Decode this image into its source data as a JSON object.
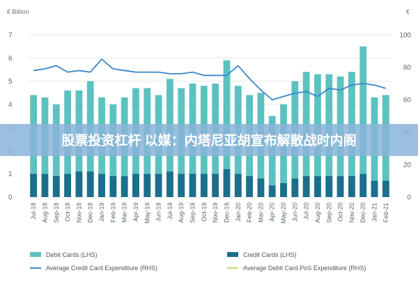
{
  "chart_data": {
    "type": "bar",
    "units_left": "€ Billion",
    "units_right": "€",
    "title": "",
    "xlabel": "",
    "ylabel": "",
    "ylim_left": [
      0,
      7
    ],
    "ylim_right": [
      0,
      100
    ],
    "yticks_left": [
      "0",
      "1",
      "2",
      "3",
      "4",
      "5",
      "6",
      "7"
    ],
    "yticks_right": [
      "0",
      "20",
      "40",
      "60",
      "80",
      "100"
    ],
    "categories": [
      "Jul-18",
      "Aug-18",
      "Sep-18",
      "Oct-18",
      "Nov-18",
      "Dec-18",
      "Jan-19",
      "Feb-19",
      "Mar-19",
      "Apr-19",
      "May-19",
      "Jun-19",
      "Jul-19",
      "Aug-19",
      "Sep-19",
      "Oct-19",
      "Nov-19",
      "Dec-19",
      "Jan-20",
      "Feb-20",
      "Mar-20",
      "Apr-20",
      "May-20",
      "Jun-20",
      "Jul-20",
      "Aug-20",
      "Sep-20",
      "Oct-20",
      "Nov-20",
      "Dec-20",
      "Jan-21",
      "Feb-21"
    ],
    "grid": true,
    "legend_position": "bottom",
    "series": [
      {
        "name": "Debit Cards (LHS)",
        "axis": "left",
        "kind": "bar",
        "color": "#5cc2c0",
        "values": [
          4.4,
          4.3,
          4.0,
          4.6,
          4.6,
          5.0,
          4.3,
          4.0,
          4.3,
          4.7,
          4.7,
          4.4,
          5.1,
          4.7,
          4.9,
          4.8,
          4.9,
          5.9,
          4.8,
          4.4,
          4.5,
          3.5,
          4.0,
          5.0,
          5.4,
          5.3,
          5.3,
          5.2,
          5.4,
          6.5,
          4.3,
          4.4
        ]
      },
      {
        "name": "Credit Cards (LHS)",
        "axis": "left",
        "kind": "bar",
        "color": "#1b6f8c",
        "values": [
          1.0,
          1.0,
          0.9,
          1.0,
          1.1,
          1.1,
          1.0,
          0.9,
          0.9,
          1.0,
          1.0,
          1.0,
          1.1,
          1.0,
          1.0,
          1.0,
          1.0,
          1.2,
          1.0,
          0.9,
          0.8,
          0.5,
          0.6,
          0.8,
          0.9,
          0.9,
          0.9,
          0.9,
          0.9,
          1.0,
          0.7,
          0.7
        ]
      },
      {
        "name": "Average Credit Card Expenditure (RHS)",
        "axis": "right",
        "kind": "line",
        "color": "#3a86c8",
        "values": [
          78,
          79,
          81,
          77,
          78,
          77,
          85,
          79,
          78,
          77,
          77,
          77,
          76,
          76,
          77,
          75,
          75,
          75,
          81,
          73,
          66,
          60,
          62,
          64,
          65,
          62,
          67,
          66,
          69,
          70,
          69,
          67
        ]
      },
      {
        "name": "Average Debit Card PoS Expenditure (RHS)",
        "axis": "right",
        "kind": "line",
        "color": "#c8d87a",
        "values": [
          null,
          null,
          null,
          null,
          null,
          null,
          null,
          null,
          null,
          null,
          null,
          null,
          null,
          null,
          null,
          null,
          null,
          null,
          null,
          null,
          null,
          null,
          null,
          null,
          null,
          null,
          null,
          null,
          null,
          null,
          null,
          null
        ]
      }
    ]
  },
  "legend": {
    "debit": "Debit Cards (LHS)",
    "credit": "Credit Cards (LHS)",
    "avg_credit": "Average Credit Card Expenditure (RHS)",
    "avg_debit": "Average Debit Card PoS Expenditure (RHS)"
  },
  "banner": {
    "text": "股票投资杠杆 以媒：内塔尼亚胡宣布解散战时内阁",
    "color": "#8ab4d8"
  }
}
